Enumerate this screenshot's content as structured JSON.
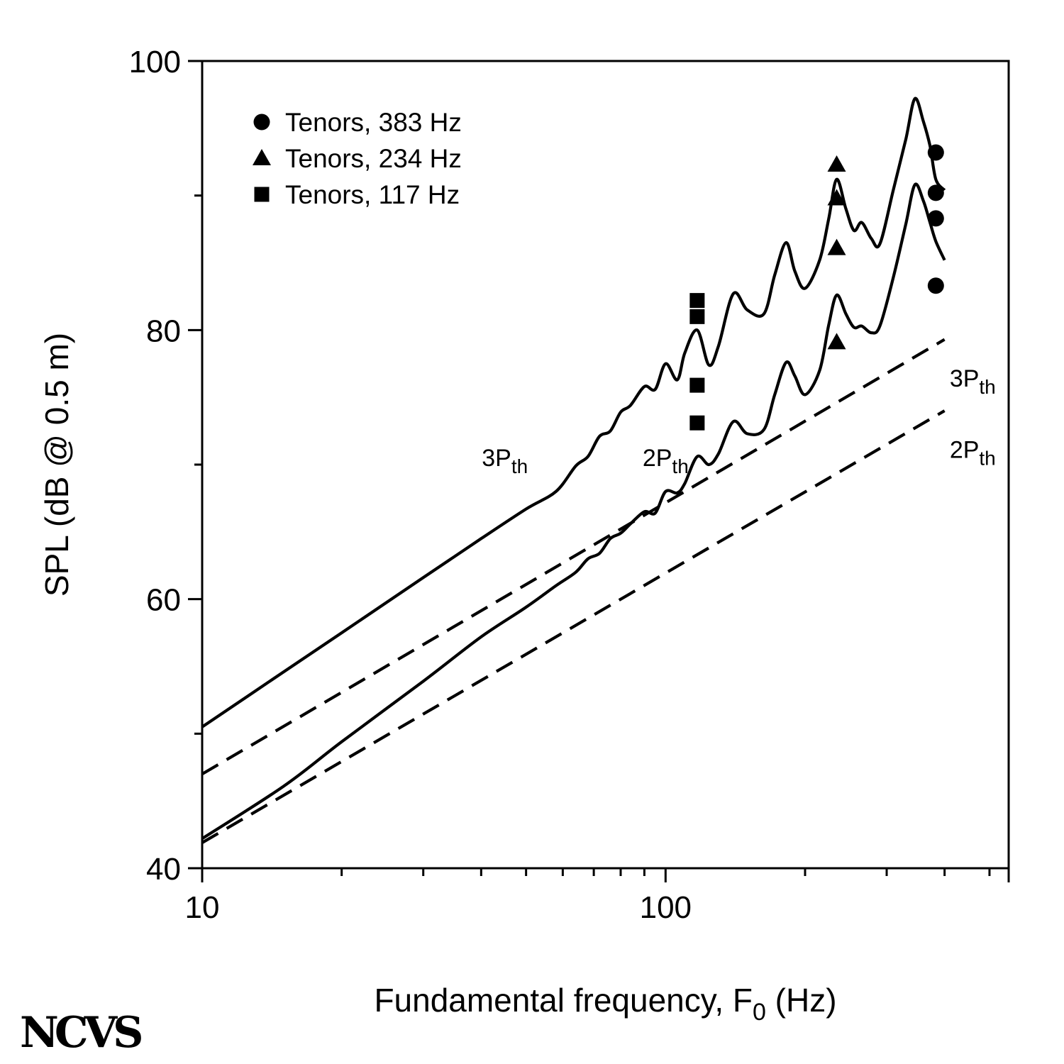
{
  "chart_data": {
    "type": "line",
    "xlabel": "Fundamental frequency, F",
    "xlabel_sub": "0",
    "xlabel_tail": " (Hz)",
    "ylabel": "SPL (dB @ 0.5 m)",
    "x_scale": "log",
    "xlim": [
      10,
      550
    ],
    "ylim": [
      40,
      100
    ],
    "x_ticks": [
      10,
      100
    ],
    "x_tick_labels": [
      "10",
      "100"
    ],
    "y_ticks": [
      40,
      60,
      80,
      100
    ],
    "y_tick_labels": [
      "40",
      "60",
      "80",
      "100"
    ],
    "grid": false,
    "legend": {
      "placement": "top-left",
      "entries": [
        {
          "label": "Tenors, 383 Hz",
          "marker": "circle"
        },
        {
          "label": "Tenors, 234 Hz",
          "marker": "triangle"
        },
        {
          "label": "Tenors, 117 Hz",
          "marker": "square"
        }
      ]
    },
    "line_series": [
      {
        "name": "3P",
        "name_sub": "th",
        "style": "solid",
        "points": [
          [
            10,
            50.5
          ],
          [
            15,
            54.6
          ],
          [
            20,
            57.5
          ],
          [
            30,
            61.6
          ],
          [
            40,
            64.5
          ],
          [
            50,
            66.7
          ],
          [
            58,
            68.0
          ],
          [
            64,
            69.9
          ],
          [
            68,
            70.6
          ],
          [
            72,
            72.1
          ],
          [
            76,
            72.5
          ],
          [
            80,
            73.9
          ],
          [
            84,
            74.4
          ],
          [
            90,
            75.8
          ],
          [
            95,
            75.6
          ],
          [
            100,
            77.5
          ],
          [
            106,
            76.3
          ],
          [
            110,
            78.3
          ],
          [
            117,
            80.0
          ],
          [
            124,
            77.4
          ],
          [
            130,
            78.8
          ],
          [
            140,
            82.7
          ],
          [
            150,
            81.5
          ],
          [
            163,
            81.2
          ],
          [
            172,
            84.1
          ],
          [
            182,
            86.5
          ],
          [
            190,
            84.4
          ],
          [
            200,
            83.1
          ],
          [
            215,
            85.2
          ],
          [
            225,
            88.3
          ],
          [
            234,
            91.2
          ],
          [
            245,
            89.0
          ],
          [
            255,
            87.4
          ],
          [
            265,
            88.0
          ],
          [
            278,
            86.8
          ],
          [
            290,
            86.4
          ],
          [
            310,
            90.4
          ],
          [
            330,
            94.2
          ],
          [
            345,
            97.2
          ],
          [
            360,
            95.5
          ],
          [
            372,
            93.7
          ],
          [
            383,
            91.2
          ],
          [
            400,
            90.4
          ]
        ]
      },
      {
        "name": "2P",
        "name_sub": "th",
        "style": "solid",
        "points": [
          [
            10,
            42.2
          ],
          [
            15,
            46.1
          ],
          [
            20,
            49.4
          ],
          [
            30,
            53.9
          ],
          [
            40,
            57.2
          ],
          [
            50,
            59.4
          ],
          [
            58,
            61.0
          ],
          [
            64,
            62.0
          ],
          [
            68,
            63.0
          ],
          [
            72,
            63.4
          ],
          [
            76,
            64.5
          ],
          [
            80,
            64.9
          ],
          [
            84,
            65.6
          ],
          [
            90,
            66.5
          ],
          [
            95,
            66.4
          ],
          [
            100,
            68.0
          ],
          [
            106,
            67.9
          ],
          [
            110,
            68.6
          ],
          [
            117,
            70.6
          ],
          [
            124,
            70.0
          ],
          [
            130,
            70.8
          ],
          [
            140,
            73.2
          ],
          [
            150,
            72.3
          ],
          [
            163,
            72.6
          ],
          [
            172,
            75.2
          ],
          [
            182,
            77.6
          ],
          [
            190,
            76.6
          ],
          [
            200,
            75.2
          ],
          [
            215,
            77.0
          ],
          [
            225,
            80.4
          ],
          [
            234,
            82.6
          ],
          [
            245,
            81.2
          ],
          [
            255,
            80.2
          ],
          [
            265,
            80.3
          ],
          [
            278,
            79.8
          ],
          [
            290,
            80.3
          ],
          [
            310,
            83.9
          ],
          [
            330,
            87.9
          ],
          [
            345,
            90.8
          ],
          [
            360,
            89.6
          ],
          [
            372,
            88.0
          ],
          [
            383,
            86.6
          ],
          [
            400,
            85.2
          ]
        ]
      },
      {
        "name": "3P",
        "name_sub": "th",
        "style": "dashed",
        "points": [
          [
            10,
            47.0
          ],
          [
            400,
            79.3
          ]
        ]
      },
      {
        "name": "2P",
        "name_sub": "th",
        "style": "dashed",
        "points": [
          [
            10,
            41.9
          ],
          [
            400,
            74.0
          ]
        ]
      }
    ],
    "scatter_series": [
      {
        "label": "Tenors, 383 Hz",
        "marker": "circle",
        "x": [
          383,
          383,
          383,
          383
        ],
        "y": [
          93.2,
          90.2,
          88.3,
          83.3
        ]
      },
      {
        "label": "Tenors, 234 Hz",
        "marker": "triangle",
        "x": [
          234,
          234,
          234,
          234
        ],
        "y": [
          92.3,
          89.8,
          86.1,
          79.1
        ]
      },
      {
        "label": "Tenors, 117 Hz",
        "marker": "square",
        "x": [
          117,
          117,
          117,
          117
        ],
        "y": [
          82.2,
          81.0,
          75.9,
          73.1
        ]
      }
    ],
    "curve_labels": [
      {
        "series": 0,
        "text": "3P",
        "sub": "th",
        "at": [
          45,
          69.9
        ]
      },
      {
        "series": 1,
        "text": "2P",
        "sub": "th",
        "at": [
          100,
          69.9
        ]
      },
      {
        "series": 2,
        "text": "3P",
        "sub": "th",
        "at": [
          460,
          75.8
        ]
      },
      {
        "series": 3,
        "text": "2P",
        "sub": "th",
        "at": [
          460,
          70.5
        ]
      }
    ]
  },
  "logo_text": "NCVS"
}
